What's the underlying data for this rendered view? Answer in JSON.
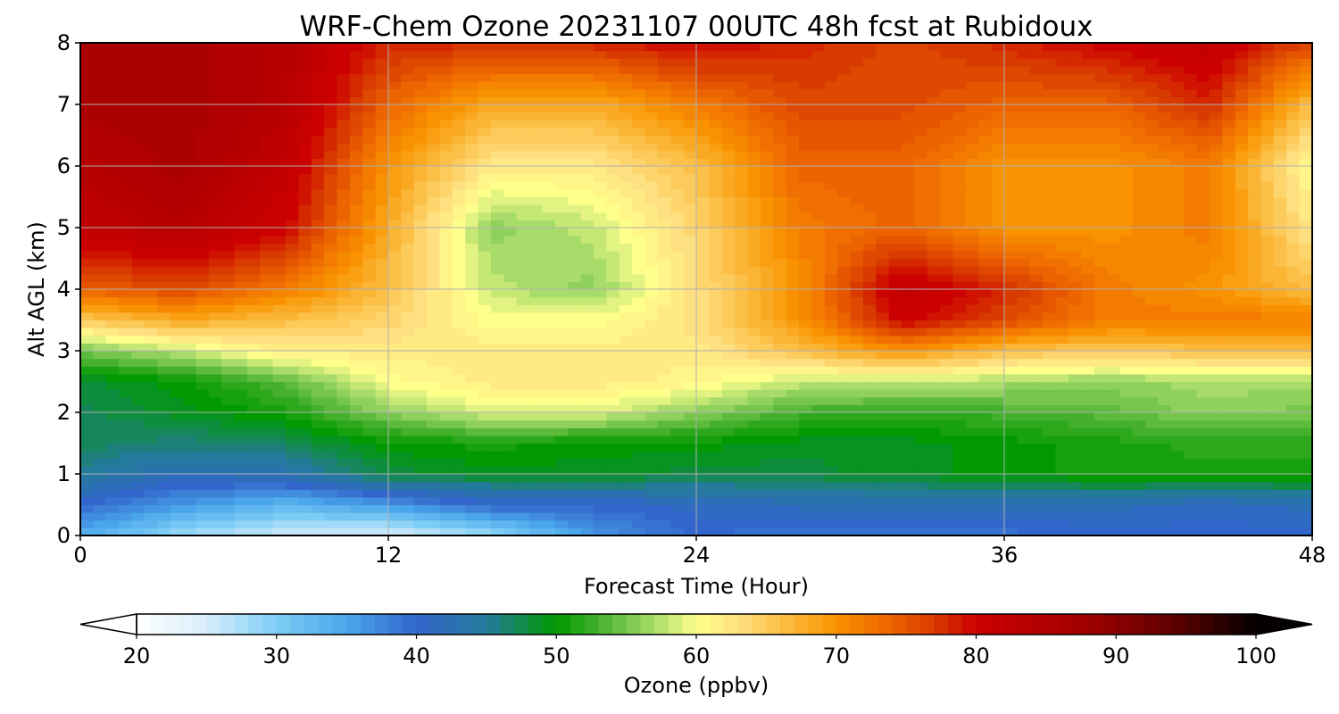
{
  "chart_data": {
    "type": "heatmap",
    "title": "WRF-Chem Ozone  20231107 00UTC 48h fcst at Rubidoux",
    "xlabel": "Forecast Time (Hour)",
    "ylabel": "Alt AGL (km)",
    "xlim": [
      0,
      48
    ],
    "ylim": [
      0,
      8
    ],
    "xticks": [
      0,
      12,
      24,
      36,
      48
    ],
    "yticks": [
      0,
      1,
      2,
      3,
      4,
      5,
      6,
      7,
      8
    ],
    "grid": true,
    "x": [
      0,
      4,
      8,
      12,
      16,
      20,
      24,
      28,
      32,
      36,
      40,
      44,
      48
    ],
    "y": [
      0,
      0.5,
      1,
      1.5,
      2,
      2.5,
      3,
      3.5,
      4,
      5,
      6,
      7,
      8
    ],
    "z": [
      [
        34,
        28,
        25,
        24,
        28,
        36,
        40,
        38,
        38,
        39,
        40,
        40,
        40
      ],
      [
        40,
        36,
        33,
        36,
        40,
        40,
        41,
        42,
        42,
        42,
        42,
        41,
        42
      ],
      [
        45,
        42,
        43,
        48,
        49,
        49,
        48,
        48,
        49,
        50,
        51,
        51,
        51
      ],
      [
        47,
        46,
        47,
        50,
        51,
        50,
        50,
        49,
        49,
        50,
        51,
        52,
        52
      ],
      [
        47,
        49,
        51,
        56,
        59,
        59,
        56,
        53,
        52,
        53,
        54,
        56,
        55
      ],
      [
        48,
        50,
        54,
        60,
        62,
        62,
        61,
        58,
        58,
        57,
        56,
        57,
        57
      ],
      [
        55,
        58,
        62,
        62,
        62,
        62,
        62,
        66,
        70,
        66,
        65,
        66,
        66
      ],
      [
        65,
        68,
        66,
        64,
        60,
        60,
        63,
        70,
        80,
        76,
        72,
        72,
        72
      ],
      [
        74,
        76,
        72,
        66,
        58,
        56,
        63,
        70,
        82,
        78,
        72,
        70,
        66
      ],
      [
        82,
        84,
        80,
        68,
        56,
        58,
        64,
        72,
        74,
        70,
        70,
        72,
        62
      ],
      [
        84,
        86,
        82,
        70,
        62,
        62,
        66,
        74,
        74,
        70,
        70,
        72,
        60
      ],
      [
        86,
        86,
        84,
        74,
        68,
        68,
        72,
        76,
        76,
        74,
        74,
        78,
        66
      ],
      [
        86,
        86,
        84,
        78,
        78,
        78,
        80,
        78,
        76,
        78,
        80,
        82,
        76
      ]
    ]
  },
  "colorbar": {
    "label": "Ozone  (ppbv)",
    "min": 20,
    "max": 100,
    "ticks": [
      20,
      30,
      40,
      50,
      60,
      70,
      80,
      90,
      100
    ],
    "extend": "both",
    "colors": [
      [
        20,
        "#ffffff"
      ],
      [
        25,
        "#d8eefb"
      ],
      [
        30,
        "#7ecdf6"
      ],
      [
        35,
        "#4aa6ea"
      ],
      [
        40,
        "#3366cc"
      ],
      [
        45,
        "#247a9a"
      ],
      [
        50,
        "#009900"
      ],
      [
        53,
        "#44b02c"
      ],
      [
        57,
        "#a8dc6a"
      ],
      [
        60,
        "#ffff8c"
      ],
      [
        63,
        "#ffe080"
      ],
      [
        67,
        "#fbb535"
      ],
      [
        70,
        "#f99200"
      ],
      [
        74,
        "#ec6400"
      ],
      [
        77,
        "#d93a00"
      ],
      [
        80,
        "#cc0000"
      ],
      [
        88,
        "#a00000"
      ],
      [
        94,
        "#600000"
      ],
      [
        100,
        "#050000"
      ]
    ]
  }
}
